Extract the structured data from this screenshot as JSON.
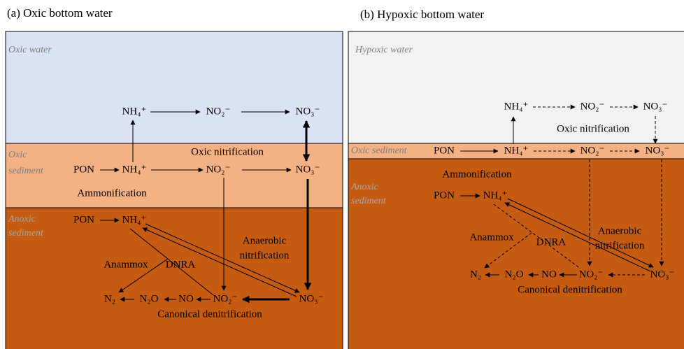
{
  "panels": [
    {
      "title": "(a) Oxic bottom water",
      "zones": [
        {
          "label": [
            "Oxic water"
          ]
        },
        {
          "label": [
            "Oxic",
            "sediment"
          ]
        },
        {
          "label": [
            "Anoxic",
            "sediment"
          ]
        }
      ],
      "nodes": [
        "NH₄⁺",
        "NO₂⁻",
        "NO₃⁻",
        "PON",
        "NH₄⁺",
        "NO₂⁻",
        "NO₃⁻",
        "PON",
        "NH₄⁺",
        "N₂",
        "N₂O",
        "NO",
        "NO₂⁻",
        "NO₃⁻"
      ],
      "processes": [
        "Oxic nitrification",
        "Ammonification",
        [
          "Anaerobic",
          "nitrification"
        ],
        "Anammox",
        "DNRA",
        "Canonical denitrification"
      ]
    },
    {
      "title": "(b) Hypoxic bottom water",
      "zones": [
        {
          "label": [
            "Hypoxic water"
          ]
        },
        {
          "label": [
            "Oxic sediment"
          ]
        },
        {
          "label": [
            "Anoxic",
            "sediment"
          ]
        }
      ],
      "nodes": [
        "NH₄⁺",
        "NO₂⁻",
        "NO₃⁻",
        "PON",
        "NH₄⁺",
        "NO₂⁻",
        "NO₃⁻",
        "PON",
        "NH₄⁺",
        "N₂",
        "N₂O",
        "NO",
        "NO₂⁻",
        "NO₃⁻"
      ],
      "processes": [
        "Oxic nitrification",
        "Ammonification",
        [
          "Anaerobic",
          "nitrification"
        ],
        "Anammox",
        "DNRA",
        "Canonical denitrification"
      ]
    }
  ]
}
